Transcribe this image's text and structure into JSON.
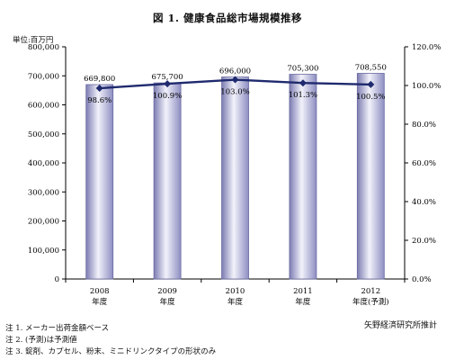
{
  "chart_data": {
    "type": "bar",
    "title": "図 1. 健康食品総市場規模推移",
    "unit_label": "単位:百万円",
    "categories": [
      "2008\n年度",
      "2009\n年度",
      "2010\n年度",
      "2011\n年度",
      "2012\n年度(予測)"
    ],
    "series": [
      {
        "name": "",
        "type": "bar",
        "axis": "left",
        "values": [
          669800,
          675700,
          696000,
          705300,
          708550
        ],
        "labels": [
          "669,800",
          "675,700",
          "696,000",
          "705,300",
          "708,550"
        ]
      },
      {
        "name": "",
        "type": "line",
        "axis": "right",
        "values": [
          98.6,
          100.9,
          103.0,
          101.3,
          100.5
        ],
        "labels": [
          "98.6%",
          "100.9%",
          "103.0%",
          "101.3%",
          "100.5%"
        ]
      }
    ],
    "y_left": {
      "range": [
        0,
        800000
      ],
      "ticks": [
        0,
        100000,
        200000,
        300000,
        400000,
        500000,
        600000,
        700000,
        800000
      ],
      "tick_labels": [
        "0",
        "100,000",
        "200,000",
        "300,000",
        "400,000",
        "500,000",
        "600,000",
        "700,000",
        "800,000"
      ]
    },
    "y_right": {
      "range": [
        0,
        120
      ],
      "ticks": [
        0,
        20,
        40,
        60,
        80,
        100,
        120
      ],
      "tick_labels": [
        "0.0%",
        "20.0%",
        "40.0%",
        "60.0%",
        "80.0%",
        "100.0%",
        "120.0%"
      ]
    },
    "grid": false,
    "legend": "none",
    "colors": {
      "bar_edge": "#6a6aa0",
      "bar_center": "#f2f2fb",
      "bar_dark": "#9a9acb",
      "line": "#1f2a6e"
    }
  },
  "notes": [
    "注 1. メーカー出荷金額ベース",
    "注 2. (予測)は予測値",
    "注 3. 錠剤、カプセル、粉末、ミニドリンクタイプの形状のみ"
  ],
  "source": "矢野経済研究所推計"
}
